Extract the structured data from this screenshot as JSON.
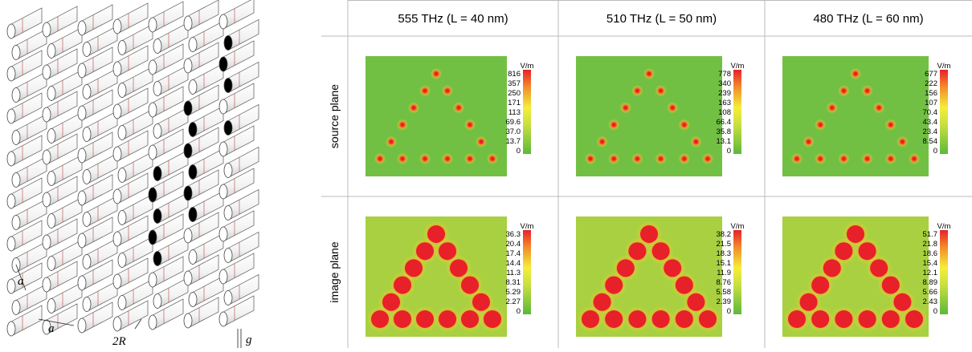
{
  "figure": {
    "lattice_labels": [
      "a",
      "a",
      "2R",
      "g"
    ],
    "columns": [
      "555 THz (L = 40 nm)",
      "510 THz (L = 50 nm)",
      "480 THz (L = 60 nm)"
    ],
    "rows": [
      {
        "label": "source plane",
        "colorbars": [
          {
            "unit": "V/m",
            "ticks": [
              "816",
              "357",
              "250",
              "171",
              "113",
              "69.6",
              "37.0",
              "13.7",
              "0"
            ]
          },
          {
            "unit": "V/m",
            "ticks": [
              "778",
              "340",
              "239",
              "163",
              "108",
              "66.4",
              "35.8",
              "13.1",
              "0"
            ]
          },
          {
            "unit": "V/m",
            "ticks": [
              "677",
              "222",
              "156",
              "107",
              "70.4",
              "43.4",
              "23.4",
              "8.54",
              "0"
            ]
          }
        ]
      },
      {
        "label": "image plane",
        "colorbars": [
          {
            "unit": "V/m",
            "ticks": [
              "36.3",
              "20.4",
              "17.4",
              "14.4",
              "11.3",
              "8.31",
              "5.29",
              "2.27",
              "0"
            ]
          },
          {
            "unit": "V/m",
            "ticks": [
              "38.2",
              "21.5",
              "18.3",
              "15.1",
              "11.9",
              "8.76",
              "5.58",
              "2.39",
              "0"
            ]
          },
          {
            "unit": "V/m",
            "ticks": [
              "51.7",
              "21.8",
              "18.6",
              "15.4",
              "12.1",
              "8.89",
              "5.66",
              "2.43",
              "0"
            ]
          }
        ]
      }
    ]
  }
}
